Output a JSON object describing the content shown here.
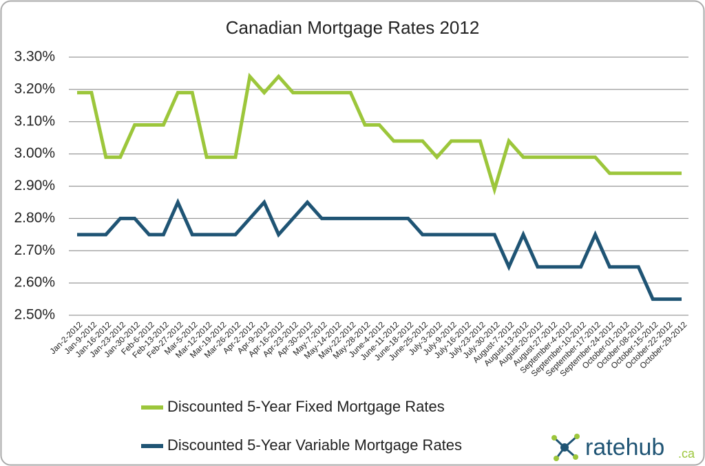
{
  "chart_data": {
    "type": "line",
    "title": "Canadian Mortgage Rates 2012",
    "categories": [
      "Jan-2-2012",
      "Jan-9-2012",
      "Jan-16-2012",
      "Jan-23-2012",
      "Jan-30-2012",
      "Feb-6-2012",
      "Feb-13-2012",
      "Feb-27-2012",
      "Mar-5-2012",
      "Mar-12-2012",
      "Mar-19-2012",
      "Mar-26-2012",
      "Apr-2-2012",
      "Apr-9-2012",
      "Apr-16-2012",
      "Apr-23-2012",
      "Apr-30-2012",
      "May-7-2012",
      "May-14-2012",
      "May-22-2012",
      "May-28-2012",
      "June-4-2012",
      "June-11-2012",
      "June-18-2012",
      "June-25-2012",
      "July-3-2012",
      "July-9-2012",
      "July-16-2012",
      "July-23-2012",
      "July-30-2012",
      "August-7-2012",
      "August-13-2012",
      "August-20-2012",
      "August-27-2012",
      "September-4-2012",
      "September-10-2012",
      "September-17-2012",
      "September-24-2012",
      "October-01-2012",
      "October-08-2012",
      "October-15-2012",
      "October-22-2012",
      "October-29-2012"
    ],
    "series": [
      {
        "name": "Discounted 5-Year Fixed Mortgage Rates",
        "color": "#9cc63b",
        "values": [
          3.19,
          3.19,
          2.99,
          2.99,
          3.09,
          3.09,
          3.09,
          3.19,
          3.19,
          2.99,
          2.99,
          2.99,
          3.24,
          3.19,
          3.24,
          3.19,
          3.19,
          3.19,
          3.19,
          3.19,
          3.09,
          3.09,
          3.04,
          3.04,
          3.04,
          2.99,
          3.04,
          3.04,
          3.04,
          2.89,
          3.04,
          2.99,
          2.99,
          2.99,
          2.99,
          2.99,
          2.99,
          2.94,
          2.94,
          2.94,
          2.94,
          2.94,
          2.94
        ]
      },
      {
        "name": "Discounted 5-Year Variable Mortgage Rates",
        "color": "#1f5474",
        "values": [
          2.75,
          2.75,
          2.75,
          2.8,
          2.8,
          2.75,
          2.75,
          2.85,
          2.75,
          2.75,
          2.75,
          2.75,
          2.8,
          2.85,
          2.75,
          2.8,
          2.85,
          2.8,
          2.8,
          2.8,
          2.8,
          2.8,
          2.8,
          2.8,
          2.75,
          2.75,
          2.75,
          2.75,
          2.75,
          2.75,
          2.65,
          2.75,
          2.65,
          2.65,
          2.65,
          2.65,
          2.75,
          2.65,
          2.65,
          2.65,
          2.55,
          2.55,
          2.55
        ]
      }
    ],
    "ylim": [
      2.5,
      3.3
    ],
    "yticks": [
      {
        "value": 2.5,
        "label": "2.50%"
      },
      {
        "value": 2.6,
        "label": "2.60%"
      },
      {
        "value": 2.7,
        "label": "2.70%"
      },
      {
        "value": 2.8,
        "label": "2.80%"
      },
      {
        "value": 2.9,
        "label": "2.90%"
      },
      {
        "value": 3.0,
        "label": "3.00%"
      },
      {
        "value": 3.1,
        "label": "3.10%"
      },
      {
        "value": 3.2,
        "label": "3.20%"
      },
      {
        "value": 3.3,
        "label": "3.30%"
      }
    ],
    "grid": true
  },
  "logo": {
    "name": "ratehub",
    "suffix": ".ca"
  }
}
